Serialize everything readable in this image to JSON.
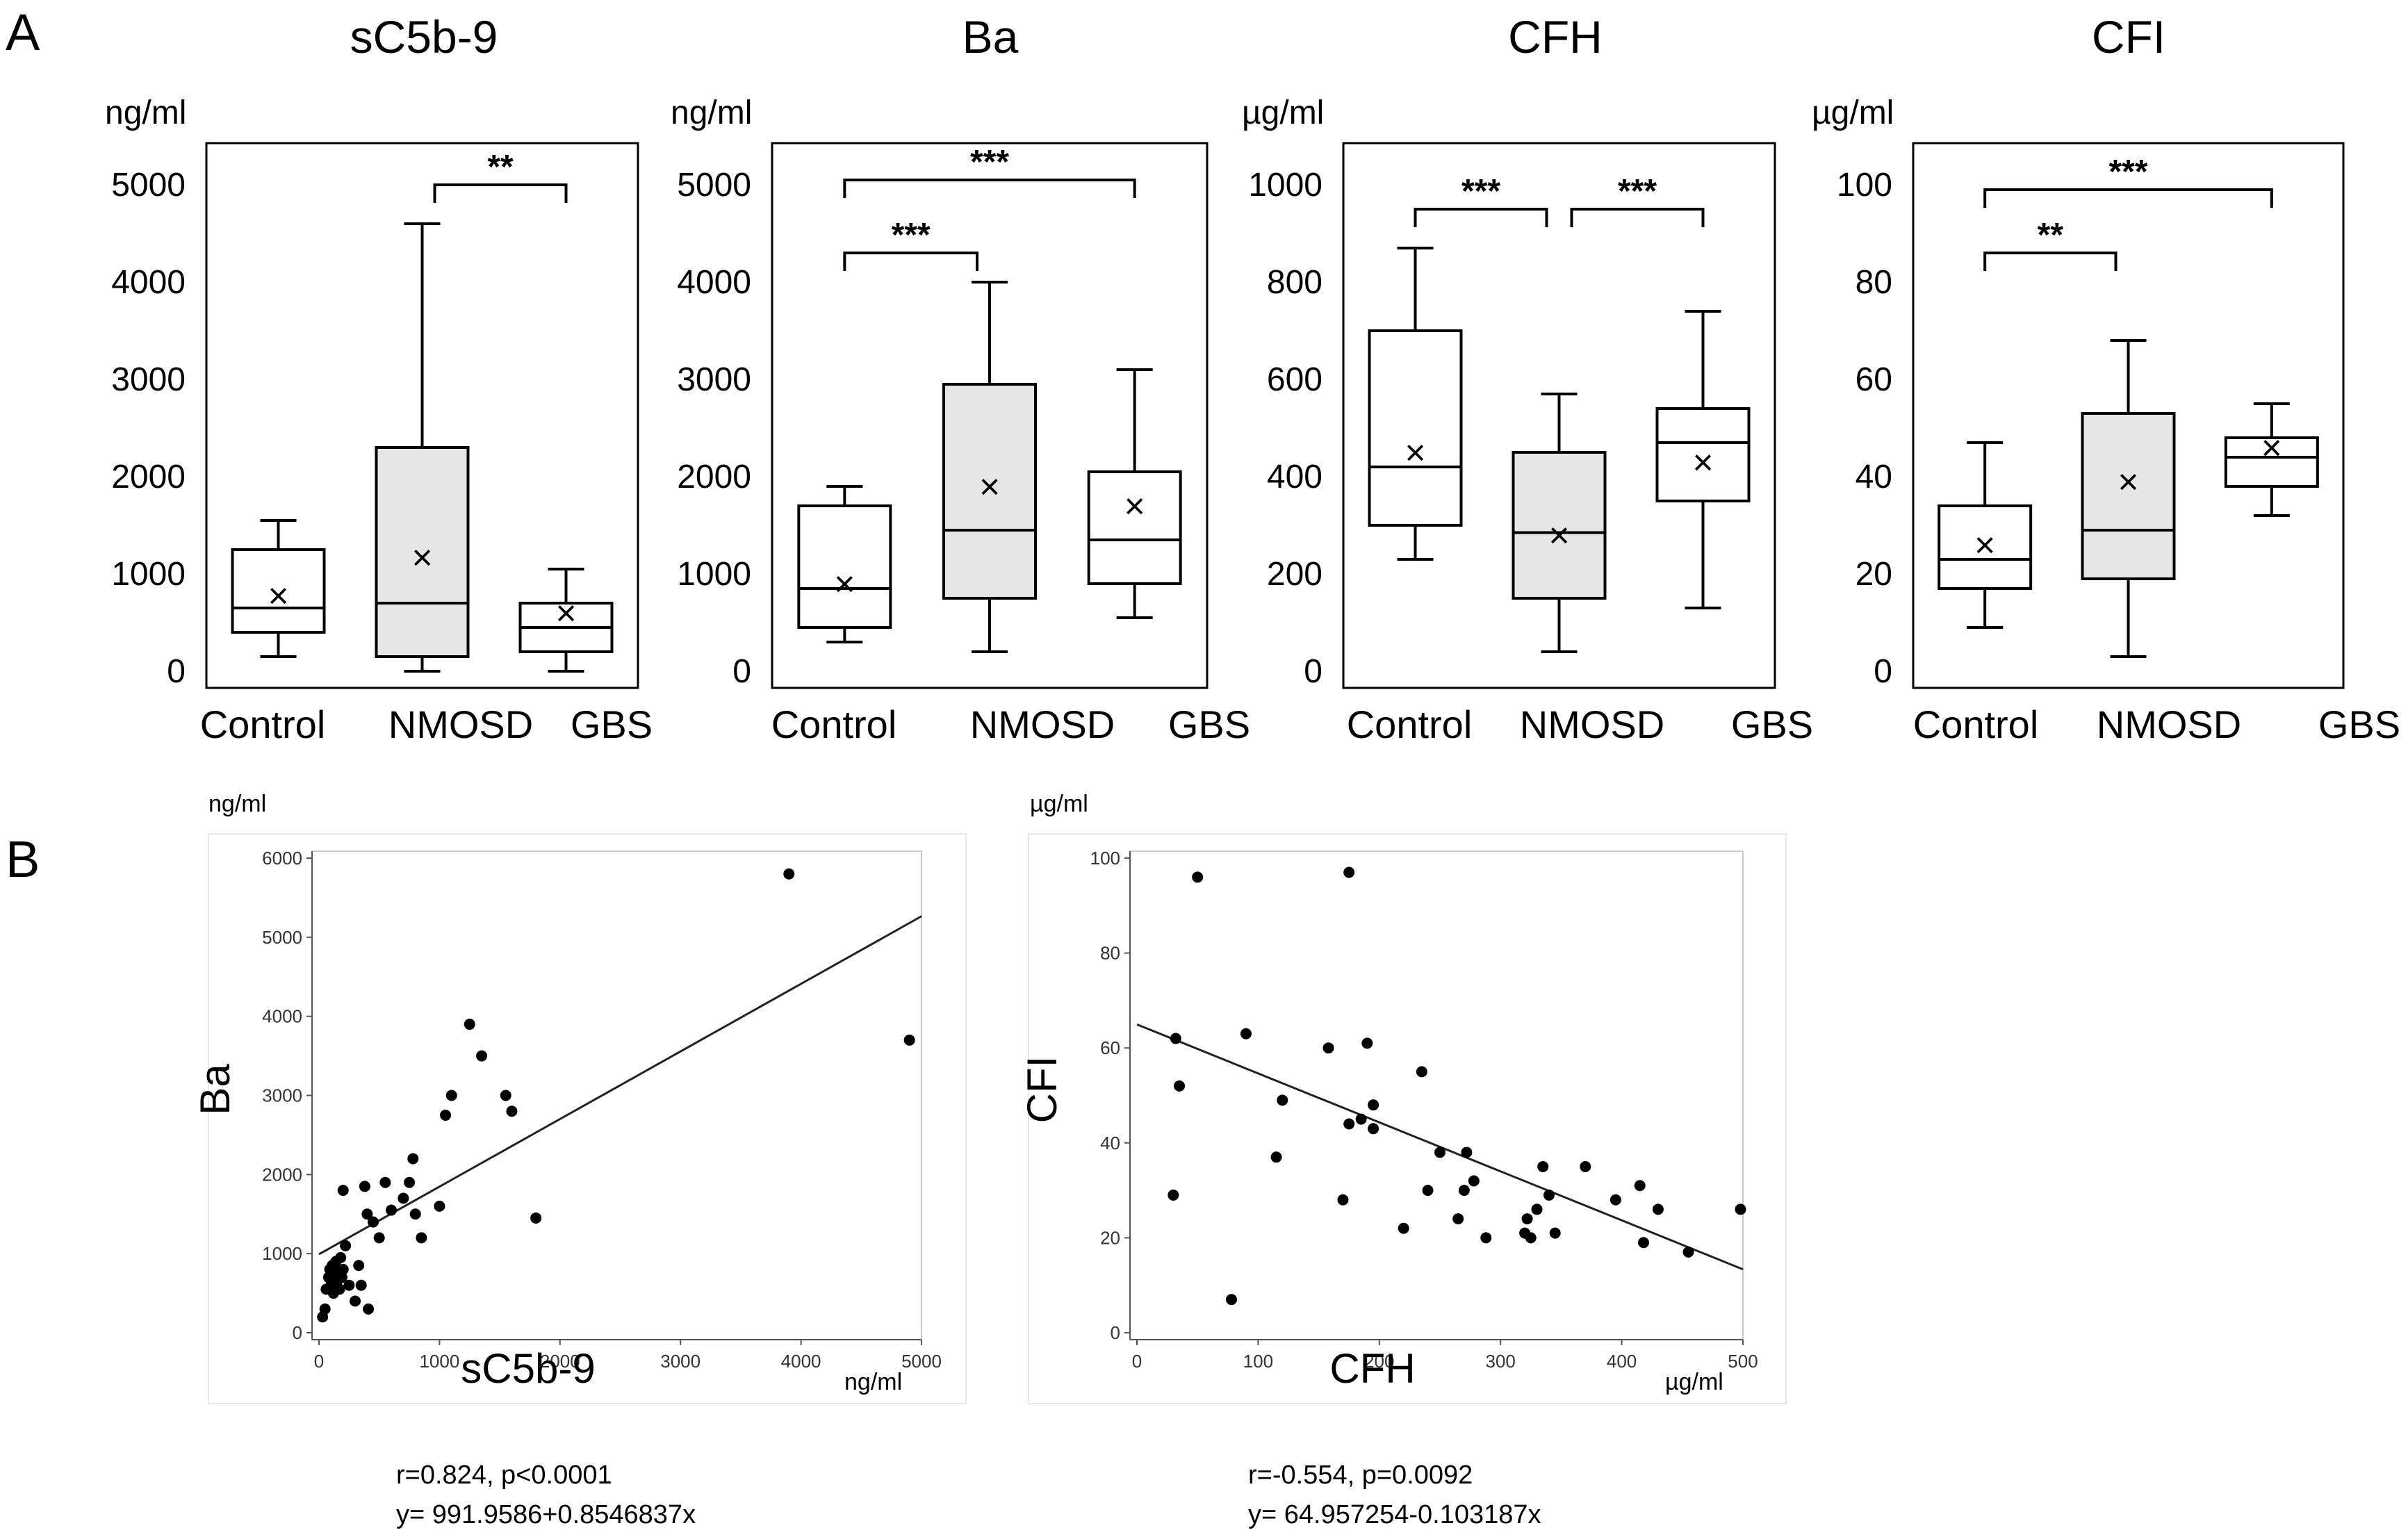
{
  "panel_labels": {
    "a": "A",
    "b": "B"
  },
  "chart_data": [
    {
      "type": "box",
      "title": "sC5b-9",
      "unit": "ng/ml",
      "categories": [
        "Control",
        "NMOSD",
        "GBS"
      ],
      "ylim": [
        0,
        5200
      ],
      "yticks": [
        0,
        1000,
        2000,
        3000,
        4000,
        5000
      ],
      "boxes": [
        {
          "name": "Control",
          "min": 150,
          "q1": 400,
          "median": 650,
          "q3": 1250,
          "max": 1550,
          "mean": 780,
          "fill": "#ffffff"
        },
        {
          "name": "NMOSD",
          "min": 0,
          "q1": 150,
          "median": 700,
          "q3": 2300,
          "max": 4600,
          "mean": 1170,
          "fill": "#e6e6e6"
        },
        {
          "name": "GBS",
          "min": 0,
          "q1": 200,
          "median": 450,
          "q3": 700,
          "max": 1050,
          "mean": 600,
          "fill": "#ffffff"
        }
      ],
      "brackets": [
        {
          "from": 1,
          "to": 2,
          "level": 5000,
          "label": "**"
        }
      ]
    },
    {
      "type": "box",
      "title": "Ba",
      "unit": "ng/ml",
      "categories": [
        "Control",
        "NMOSD",
        "GBS"
      ],
      "ylim": [
        0,
        5200
      ],
      "yticks": [
        0,
        1000,
        2000,
        3000,
        4000,
        5000
      ],
      "boxes": [
        {
          "name": "Control",
          "min": 300,
          "q1": 450,
          "median": 850,
          "q3": 1700,
          "max": 1900,
          "mean": 900,
          "fill": "#ffffff"
        },
        {
          "name": "NMOSD",
          "min": 200,
          "q1": 750,
          "median": 1450,
          "q3": 2950,
          "max": 4000,
          "mean": 1900,
          "fill": "#e6e6e6"
        },
        {
          "name": "GBS",
          "min": 550,
          "q1": 900,
          "median": 1350,
          "q3": 2050,
          "max": 3100,
          "mean": 1700,
          "fill": "#ffffff"
        }
      ],
      "brackets": [
        {
          "from": 0,
          "to": 2,
          "level": 5050,
          "label": "***"
        },
        {
          "from": 0,
          "to": 1,
          "level": 4300,
          "label": "***"
        }
      ]
    },
    {
      "type": "box",
      "title": "CFH",
      "unit": "µg/ml",
      "categories": [
        "Control",
        "NMOSD",
        "GBS"
      ],
      "ylim": [
        0,
        1040
      ],
      "yticks": [
        0,
        200,
        400,
        600,
        800,
        1000
      ],
      "boxes": [
        {
          "name": "Control",
          "min": 230,
          "q1": 300,
          "median": 420,
          "q3": 700,
          "max": 870,
          "mean": 450,
          "fill": "#ffffff"
        },
        {
          "name": "NMOSD",
          "min": 40,
          "q1": 150,
          "median": 285,
          "q3": 450,
          "max": 570,
          "mean": 280,
          "fill": "#e6e6e6"
        },
        {
          "name": "GBS",
          "min": 130,
          "q1": 350,
          "median": 470,
          "q3": 540,
          "max": 740,
          "mean": 430,
          "fill": "#ffffff"
        }
      ],
      "brackets": [
        {
          "from": 0,
          "to": 1,
          "level": 950,
          "label": "***"
        },
        {
          "from": 1,
          "to": 2,
          "level": 950,
          "label": "***"
        }
      ]
    },
    {
      "type": "box",
      "title": "CFI",
      "unit": "µg/ml",
      "categories": [
        "Control",
        "NMOSD",
        "GBS"
      ],
      "ylim": [
        0,
        104
      ],
      "yticks": [
        0,
        20,
        40,
        60,
        80,
        100
      ],
      "boxes": [
        {
          "name": "Control",
          "min": 9,
          "q1": 17,
          "median": 23,
          "q3": 34,
          "max": 47,
          "mean": 26,
          "fill": "#ffffff"
        },
        {
          "name": "NMOSD",
          "min": 3,
          "q1": 19,
          "median": 29,
          "q3": 53,
          "max": 68,
          "mean": 39,
          "fill": "#e6e6e6"
        },
        {
          "name": "GBS",
          "min": 32,
          "q1": 38,
          "median": 44,
          "q3": 48,
          "max": 55,
          "mean": 46,
          "fill": "#ffffff"
        }
      ],
      "brackets": [
        {
          "from": 0,
          "to": 2,
          "level": 99,
          "label": "***"
        },
        {
          "from": 0,
          "to": 1,
          "level": 86,
          "label": "**"
        }
      ]
    },
    {
      "type": "scatter",
      "xlabel": "sC5b-9",
      "ylabel": "Ba",
      "xunit": "ng/ml",
      "yunit": "ng/ml",
      "xlim": [
        0,
        5000
      ],
      "ylim": [
        0,
        6000
      ],
      "xticks": [
        0,
        1000,
        2000,
        3000,
        4000,
        5000
      ],
      "yticks": [
        0,
        1000,
        2000,
        3000,
        4000,
        5000,
        6000
      ],
      "fit": {
        "intercept": 991.9586,
        "slope": 0.8546837
      },
      "stats": "r=0.824,  p<0.0001",
      "equation": "y= 991.9586+0.8546837x",
      "points": [
        [
          30,
          200
        ],
        [
          50,
          300
        ],
        [
          60,
          550
        ],
        [
          80,
          700
        ],
        [
          90,
          800
        ],
        [
          100,
          600
        ],
        [
          110,
          850
        ],
        [
          120,
          500
        ],
        [
          130,
          750
        ],
        [
          140,
          900
        ],
        [
          150,
          650
        ],
        [
          160,
          800
        ],
        [
          170,
          550
        ],
        [
          180,
          950
        ],
        [
          190,
          700
        ],
        [
          200,
          800
        ],
        [
          220,
          1100
        ],
        [
          250,
          600
        ],
        [
          300,
          400
        ],
        [
          330,
          850
        ],
        [
          350,
          600
        ],
        [
          380,
          1850
        ],
        [
          400,
          1500
        ],
        [
          410,
          300
        ],
        [
          450,
          1400
        ],
        [
          500,
          1200
        ],
        [
          550,
          1900
        ],
        [
          600,
          1550
        ],
        [
          700,
          1700
        ],
        [
          750,
          1900
        ],
        [
          780,
          2200
        ],
        [
          800,
          1500
        ],
        [
          850,
          1200
        ],
        [
          1000,
          1600
        ],
        [
          1050,
          2750
        ],
        [
          1100,
          3000
        ],
        [
          1250,
          3900
        ],
        [
          1350,
          3500
        ],
        [
          1550,
          3000
        ],
        [
          1600,
          2800
        ],
        [
          1800,
          1450
        ],
        [
          3900,
          5800
        ],
        [
          4900,
          3700
        ],
        [
          200,
          1800
        ]
      ]
    },
    {
      "type": "scatter",
      "xlabel": "CFH",
      "ylabel": "CFI",
      "xunit": "µg/ml",
      "yunit": "µg/ml",
      "xlim": [
        0,
        500
      ],
      "ylim": [
        0,
        100
      ],
      "xticks": [
        0,
        100,
        200,
        300,
        400,
        500
      ],
      "yticks": [
        0,
        20,
        40,
        60,
        80,
        100
      ],
      "fit": {
        "intercept": 64.957254,
        "slope": -0.103187
      },
      "stats": "r=-0.554,  p=0.0092",
      "equation": "y= 64.957254-0.103187x",
      "points": [
        [
          30,
          29
        ],
        [
          32,
          62
        ],
        [
          35,
          52
        ],
        [
          50,
          96
        ],
        [
          78,
          7
        ],
        [
          90,
          63
        ],
        [
          115,
          37
        ],
        [
          120,
          49
        ],
        [
          158,
          60
        ],
        [
          170,
          28
        ],
        [
          175,
          97
        ],
        [
          175,
          44
        ],
        [
          185,
          45
        ],
        [
          190,
          61
        ],
        [
          195,
          43
        ],
        [
          195,
          48
        ],
        [
          220,
          22
        ],
        [
          235,
          55
        ],
        [
          240,
          30
        ],
        [
          250,
          38
        ],
        [
          265,
          24
        ],
        [
          270,
          30
        ],
        [
          272,
          38
        ],
        [
          278,
          32
        ],
        [
          288,
          20
        ],
        [
          320,
          21
        ],
        [
          322,
          24
        ],
        [
          325,
          20
        ],
        [
          330,
          26
        ],
        [
          335,
          35
        ],
        [
          340,
          29
        ],
        [
          345,
          21
        ],
        [
          370,
          35
        ],
        [
          395,
          28
        ],
        [
          415,
          31
        ],
        [
          418,
          19
        ],
        [
          430,
          26
        ],
        [
          455,
          17
        ],
        [
          498,
          26
        ]
      ]
    }
  ]
}
